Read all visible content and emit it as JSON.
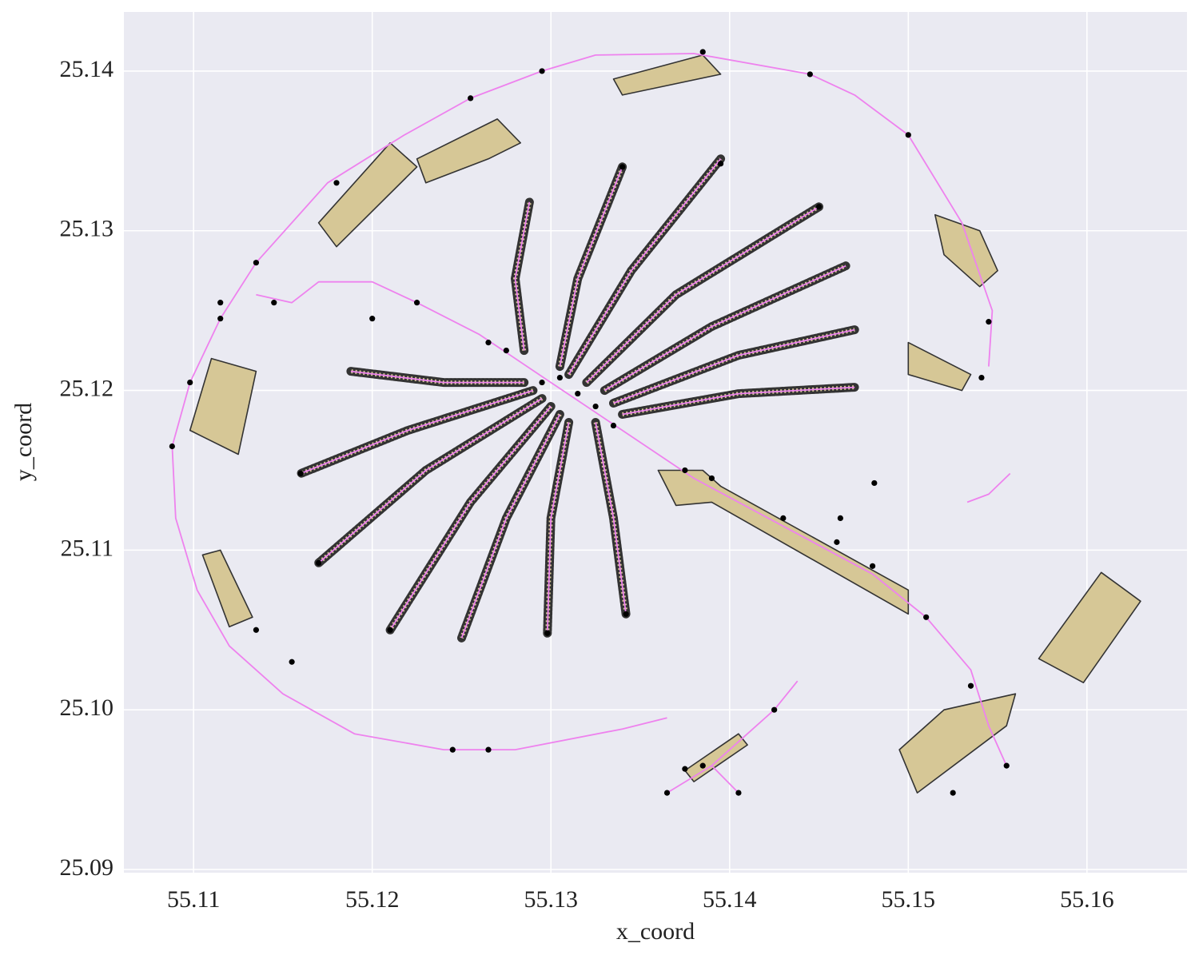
{
  "chart_data": {
    "type": "map",
    "xlabel": "x_coord",
    "ylabel": "y_coord",
    "xlim": [
      55.1061,
      55.1656
    ],
    "ylim": [
      25.0898,
      25.1437
    ],
    "xticks": [
      55.11,
      55.12,
      55.13,
      55.14,
      55.15,
      55.16
    ],
    "yticks": [
      25.09,
      {
        "value": 25.1,
        "label": "25.10"
      },
      25.11,
      25.12,
      25.13,
      25.14
    ],
    "grid": true,
    "road_color": "#ee82ee",
    "node_color": "#000000",
    "building_color": "#d6c796",
    "building_edge": "#333333",
    "buildings": [
      {
        "x": [
          55.1573,
          55.1608,
          55.163,
          55.1598
        ],
        "y": [
          25.1032,
          25.1086,
          25.1068,
          25.1017
        ]
      },
      {
        "x": [
          55.1098,
          55.111,
          55.1135,
          55.1125
        ],
        "y": [
          25.1175,
          25.122,
          25.1212,
          25.116
        ]
      },
      {
        "x": [
          55.1105,
          55.112,
          55.1133,
          55.1115
        ],
        "y": [
          25.1097,
          25.1052,
          25.1058,
          25.11
        ]
      },
      {
        "x": [
          55.117,
          55.121,
          55.1225,
          55.118
        ],
        "y": [
          25.1305,
          25.1355,
          25.134,
          25.129
        ]
      },
      {
        "x": [
          55.1225,
          55.127,
          55.1283,
          55.1265,
          55.123
        ],
        "y": [
          25.1345,
          25.137,
          25.1355,
          25.1345,
          25.133
        ]
      },
      {
        "x": [
          55.1515,
          55.152,
          55.154,
          55.155,
          55.154
        ],
        "y": [
          25.131,
          25.1285,
          25.1265,
          25.1275,
          25.13
        ]
      },
      {
        "x": [
          55.15,
          55.1535,
          55.153,
          55.15
        ],
        "y": [
          25.123,
          25.121,
          25.12,
          25.121
        ]
      },
      {
        "x": [
          55.1505,
          55.1555,
          55.156,
          55.152,
          55.1495
        ],
        "y": [
          25.0948,
          25.099,
          25.101,
          25.1,
          25.0975
        ]
      },
      {
        "x": [
          55.136,
          55.1385,
          55.1395,
          55.15,
          55.15,
          55.139,
          55.137
        ],
        "y": [
          25.115,
          25.115,
          25.114,
          25.1075,
          25.106,
          25.113,
          25.1128
        ]
      },
      {
        "x": [
          55.1335,
          55.1385,
          55.1395,
          55.134
        ],
        "y": [
          25.1395,
          25.141,
          25.1398,
          25.1385
        ]
      },
      {
        "x": [
          55.1375,
          55.1405,
          55.141,
          55.138
        ],
        "y": [
          25.0962,
          25.0985,
          25.0978,
          25.0955
        ]
      }
    ],
    "roads": [
      {
        "x": [
          55.1545,
          55.1547,
          55.153,
          55.15,
          55.147,
          55.1445,
          55.138,
          55.1325,
          55.1295,
          55.1255,
          55.1218,
          55.1175,
          55.1135,
          55.1115,
          55.1098,
          55.1088,
          55.109,
          55.1102,
          55.112,
          55.115,
          55.119,
          55.124,
          55.128,
          55.134,
          55.1365
        ],
        "y": [
          25.1215,
          25.125,
          25.1305,
          25.136,
          25.1385,
          25.1398,
          25.1411,
          25.141,
          25.14,
          25.1383,
          25.136,
          25.133,
          25.128,
          25.1245,
          25.1205,
          25.1165,
          25.112,
          25.1075,
          25.104,
          25.101,
          25.0985,
          25.0975,
          25.0975,
          25.0988,
          25.0995
        ]
      },
      {
        "x": [
          55.1225,
          55.126,
          55.13,
          55.134,
          55.138,
          55.143,
          55.148,
          55.151,
          55.1535,
          55.1545,
          55.1555
        ],
        "y": [
          25.1255,
          25.1235,
          25.1205,
          25.1175,
          25.1145,
          25.1115,
          25.1085,
          25.1058,
          25.1025,
          25.099,
          25.0965
        ]
      },
      {
        "x": [
          55.1225,
          55.12,
          55.117,
          55.1155,
          55.1135
        ],
        "y": [
          25.1255,
          25.1268,
          25.1268,
          25.1255,
          25.126
        ]
      },
      {
        "x": [
          55.1533,
          55.1545,
          55.1557
        ],
        "y": [
          25.113,
          25.1135,
          25.1148
        ]
      },
      {
        "x": [
          55.1365,
          55.139,
          55.1425,
          55.1438
        ],
        "y": [
          25.0948,
          25.0965,
          25.1,
          25.1018
        ]
      },
      {
        "x": [
          55.139,
          55.1405
        ],
        "y": [
          25.0965,
          25.0948
        ]
      }
    ],
    "fronds": [
      {
        "x": [
          55.1285,
          55.128,
          55.1288
        ],
        "y": [
          25.1225,
          25.127,
          25.1318
        ]
      },
      {
        "x": [
          55.1305,
          55.1315,
          55.134
        ],
        "y": [
          25.1215,
          25.127,
          25.134
        ]
      },
      {
        "x": [
          55.131,
          55.1345,
          55.1395
        ],
        "y": [
          25.121,
          25.1275,
          25.1345
        ]
      },
      {
        "x": [
          55.132,
          55.137,
          55.145
        ],
        "y": [
          25.1205,
          25.126,
          25.1315
        ]
      },
      {
        "x": [
          55.133,
          55.139,
          55.1465
        ],
        "y": [
          25.12,
          25.124,
          25.1278
        ]
      },
      {
        "x": [
          55.1335,
          55.1405,
          55.147
        ],
        "y": [
          25.1192,
          25.1222,
          25.1238
        ]
      },
      {
        "x": [
          55.134,
          55.1405,
          55.147
        ],
        "y": [
          25.1185,
          25.1198,
          25.1202
        ]
      },
      {
        "x": [
          55.1285,
          55.124,
          55.1188
        ],
        "y": [
          25.1205,
          25.1205,
          25.1212
        ]
      },
      {
        "x": [
          55.129,
          55.122,
          55.116
        ],
        "y": [
          25.12,
          25.1175,
          25.1148
        ]
      },
      {
        "x": [
          55.1295,
          55.123,
          55.117
        ],
        "y": [
          25.1195,
          25.115,
          25.1092
        ]
      },
      {
        "x": [
          55.13,
          55.1255,
          55.121
        ],
        "y": [
          25.119,
          25.113,
          25.105
        ]
      },
      {
        "x": [
          55.1305,
          55.1275,
          55.125
        ],
        "y": [
          25.1185,
          25.112,
          25.1045
        ]
      },
      {
        "x": [
          55.131,
          55.13,
          55.1298
        ],
        "y": [
          25.118,
          25.112,
          25.1048
        ]
      },
      {
        "x": [
          55.1325,
          55.1335,
          55.1342
        ],
        "y": [
          25.118,
          25.112,
          25.106
        ]
      }
    ],
    "nodes": {
      "x": [
        55.1088,
        55.1098,
        55.1115,
        55.1135,
        55.118,
        55.1255,
        55.1295,
        55.1385,
        55.1445,
        55.15,
        55.1545,
        55.1541,
        55.1135,
        55.1155,
        55.1115,
        55.1145,
        55.12,
        55.1225,
        55.1265,
        55.1275,
        55.1295,
        55.1305,
        55.1315,
        55.1325,
        55.1335,
        55.1375,
        55.139,
        55.143,
        55.146,
        55.148,
        55.151,
        55.1535,
        55.1555,
        55.1525,
        55.1375,
        55.1385,
        55.1405,
        55.1365,
        55.1425,
        55.134,
        55.1395,
        55.145,
        55.1298,
        55.121,
        55.117,
        55.116,
        55.1245,
        55.1265,
        55.1342,
        55.1481,
        55.1462
      ],
      "y": [
        25.1165,
        25.1205,
        25.1245,
        25.128,
        25.133,
        25.1383,
        25.14,
        25.1412,
        25.1398,
        25.136,
        25.1243,
        25.1208,
        25.105,
        25.103,
        25.1255,
        25.1255,
        25.1245,
        25.1255,
        25.123,
        25.1225,
        25.1205,
        25.1208,
        25.1198,
        25.119,
        25.1178,
        25.115,
        25.1145,
        25.112,
        25.1105,
        25.109,
        25.1058,
        25.1015,
        25.0965,
        25.0948,
        25.0963,
        25.0965,
        25.0948,
        25.0948,
        25.1,
        25.134,
        25.1342,
        25.1315,
        25.1048,
        25.105,
        25.1092,
        25.1148,
        25.0975,
        25.0975,
        25.106,
        25.1142,
        25.112
      ]
    }
  }
}
